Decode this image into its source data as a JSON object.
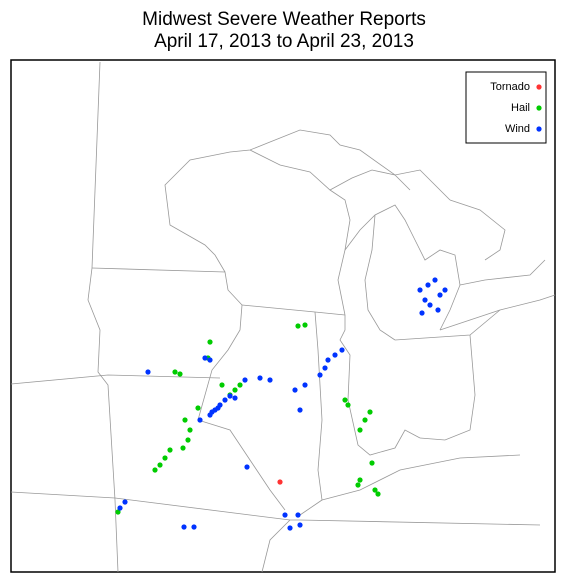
{
  "title": [
    "Midwest Severe Weather Reports",
    "April 17, 2013 to April 23, 2013"
  ],
  "legend": [
    {
      "label": "Tornado",
      "color": "#ff3333"
    },
    {
      "label": "Hail",
      "color": "#00cc00"
    },
    {
      "label": "Wind",
      "color": "#0033ff"
    }
  ]
}
